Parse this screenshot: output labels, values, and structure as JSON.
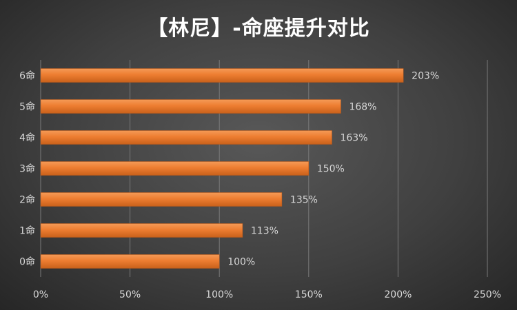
{
  "chart_data": {
    "type": "bar",
    "orientation": "horizontal",
    "title": "【林尼】-命座提升对比",
    "categories": [
      "0命",
      "1命",
      "2命",
      "3命",
      "4命",
      "5命",
      "6命"
    ],
    "values": [
      100,
      113,
      135,
      150,
      163,
      168,
      203
    ],
    "data_labels": [
      "100%",
      "113%",
      "135%",
      "150%",
      "163%",
      "168%",
      "203%"
    ],
    "xlim": [
      0,
      250
    ],
    "xticks": [
      0,
      50,
      100,
      150,
      200,
      250
    ],
    "xtick_labels": [
      "0%",
      "50%",
      "100%",
      "150%",
      "200%",
      "250%"
    ],
    "grid": true,
    "legend": "none",
    "bar_color": "#ED7D31",
    "background_color": "#404040"
  }
}
